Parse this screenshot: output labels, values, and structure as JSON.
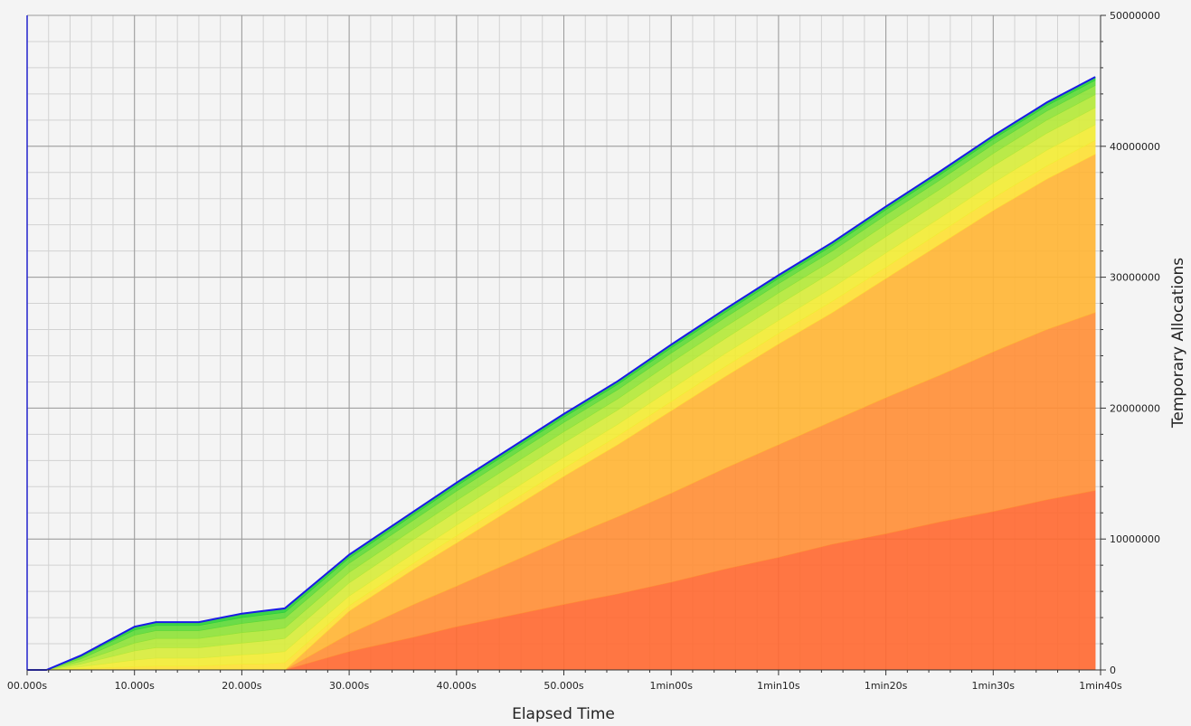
{
  "chart_data": {
    "type": "area",
    "stacked": true,
    "title": "",
    "xlabel": "Elapsed Time",
    "ylabel": "Temporary Allocations",
    "x_unit": "seconds",
    "xlim": [
      0,
      100
    ],
    "ylim": [
      0,
      50000000
    ],
    "x_ticks": [
      0,
      10,
      20,
      30,
      40,
      50,
      60,
      70,
      80,
      90,
      100
    ],
    "x_tick_labels": [
      "00.000s",
      "10.000s",
      "20.000s",
      "30.000s",
      "40.000s",
      "50.000s",
      "1min00s",
      "1min10s",
      "1min20s",
      "1min30s",
      "1min40s"
    ],
    "y_ticks": [
      0,
      10000000,
      20000000,
      30000000,
      40000000,
      50000000
    ],
    "y_tick_labels": [
      "0",
      "10000000",
      "20000000",
      "30000000",
      "40000000",
      "50000000"
    ],
    "y_axis_side": "right",
    "grid": true,
    "legend": "none",
    "x": [
      0,
      1.8,
      5,
      10,
      12,
      16,
      20,
      22,
      24,
      30,
      36,
      40,
      50,
      55,
      60,
      65,
      70,
      75,
      80,
      85,
      90,
      95,
      99.5
    ],
    "series": [
      {
        "color": "#ff6a33",
        "values": [
          0,
          0,
          0,
          0,
          0,
          0,
          0,
          0,
          0,
          1400000,
          2500000,
          3300000,
          5000000,
          5800000,
          6700000,
          7700000,
          8600000,
          9600000,
          10400000,
          11300000,
          12100000,
          13000000,
          13700000
        ]
      },
      {
        "color": "#ff8f38",
        "values": [
          0,
          0,
          0,
          0,
          0,
          0,
          0,
          0,
          0,
          1350000,
          2500000,
          3100000,
          5000000,
          5900000,
          6800000,
          7700000,
          8600000,
          9400000,
          10400000,
          11200000,
          12200000,
          13000000,
          13600000
        ]
      },
      {
        "color": "#ffb536",
        "values": [
          0,
          0,
          0,
          0,
          0,
          0,
          0,
          0,
          0,
          1750000,
          2700000,
          3300000,
          4800000,
          5500000,
          6300000,
          7000000,
          7700000,
          8300000,
          9100000,
          10000000,
          10800000,
          11500000,
          12100000
        ]
      },
      {
        "color": "#fde036",
        "values": [
          0,
          0,
          100000.0,
          250000.0,
          300000.0,
          300000.0,
          450000.0,
          450000.0,
          550000.0,
          400000.0,
          450000.0,
          550000.0,
          600000.0,
          650000.0,
          700000.0,
          750000.0,
          800000.0,
          850000.0,
          850000.0,
          900000.0,
          950000.0,
          1000000,
          1050000
        ]
      },
      {
        "color": "#f2ec35",
        "values": [
          0,
          0,
          150000.0,
          500000.0,
          600000.0,
          600000.0,
          700000.0,
          800000.0,
          850000.0,
          750000.0,
          750000.0,
          800000.0,
          850000.0,
          900000.0,
          950000.0,
          1000000,
          1000000,
          1050000,
          1100000,
          1100000,
          1150000,
          1200000,
          1200000
        ]
      },
      {
        "color": "#d8ec3c",
        "values": [
          0,
          0,
          200000.0,
          700000.0,
          800000.0,
          800000.0,
          900000.0,
          950000.0,
          1000000,
          1000000,
          1050000,
          1050000,
          1100000,
          1100000,
          1150000,
          1150000,
          1200000,
          1200000,
          1250000,
          1250000,
          1300000,
          1300000,
          1300000
        ]
      },
      {
        "color": "#b4e83a",
        "values": [
          0,
          0,
          200000.0,
          600000.0,
          700000.0,
          700000.0,
          800000.0,
          800000.0,
          800000.0,
          800000.0,
          800000.0,
          850000.0,
          850000.0,
          850000.0,
          900000.0,
          900000.0,
          900000.0,
          900000.0,
          950000.0,
          950000.0,
          950000.0,
          1000000,
          1000000
        ]
      },
      {
        "color": "#8fe23a",
        "values": [
          0,
          0,
          200000.0,
          600000.0,
          600000.0,
          600000.0,
          700000.0,
          750000.0,
          750000.0,
          700000.0,
          700000.0,
          700000.0,
          700000.0,
          700000.0,
          700000.0,
          700000.0,
          700000.0,
          700000.0,
          700000.0,
          700000.0,
          700000.0,
          700000.0,
          700000.0
        ]
      },
      {
        "color": "#5ed93a",
        "values": [
          0,
          0,
          150000.0,
          400000.0,
          400000.0,
          400000.0,
          450000.0,
          450000.0,
          450000.0,
          400000.0,
          400000.0,
          400000.0,
          400000.0,
          400000.0,
          400000.0,
          400000.0,
          400000.0,
          400000.0,
          400000.0,
          400000.0,
          400000.0,
          400000.0,
          400000.0
        ]
      },
      {
        "color": "#2ccf3a",
        "values": [
          0,
          0,
          100000.0,
          250000.0,
          250000.0,
          250000.0,
          300000.0,
          300000.0,
          300000.0,
          250000.0,
          250000.0,
          250000.0,
          250000.0,
          250000.0,
          250000.0,
          250000.0,
          250000.0,
          250000.0,
          250000.0,
          250000.0,
          250000.0,
          250000.0,
          250000.0
        ]
      }
    ],
    "total_outline_color": "#1a1ae6",
    "axis_color": "#2222cc",
    "grid_major_color": "#9a9a9a",
    "grid_minor_color": "#d2d2d2"
  }
}
